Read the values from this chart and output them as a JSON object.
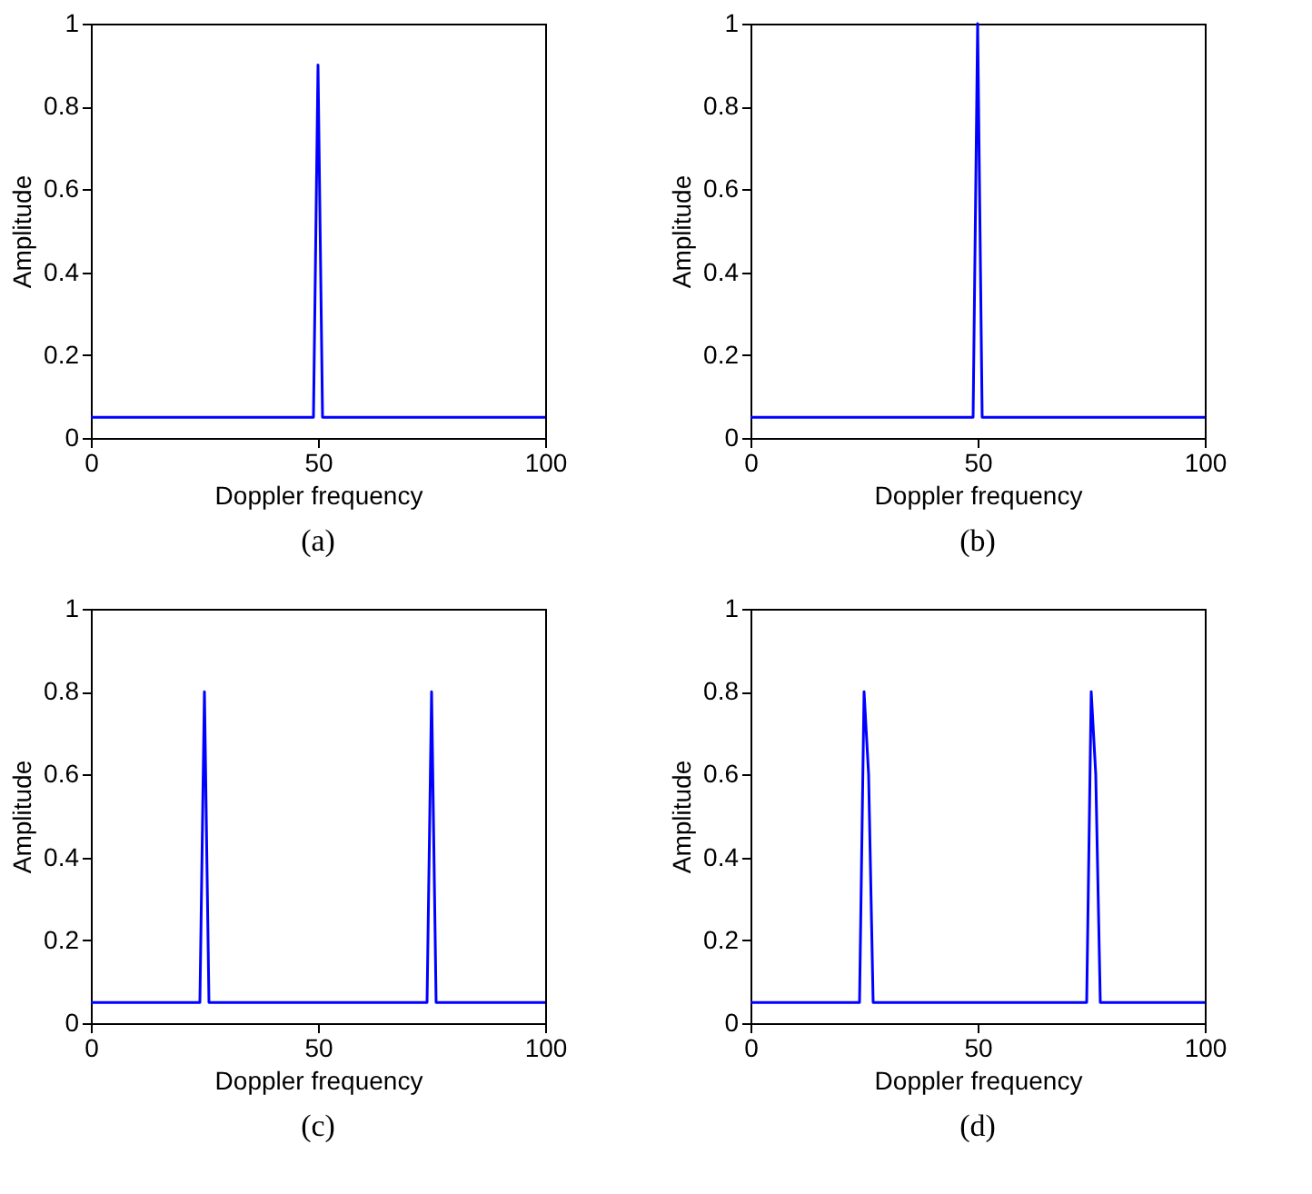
{
  "chart_data": [
    {
      "type": "line",
      "xlabel": "Doppler frequency",
      "ylabel": "Amplitude",
      "annotations": [
        "(a)"
      ],
      "xlim": [
        0,
        100
      ],
      "ylim": [
        0,
        1
      ],
      "xticks": [
        0,
        50,
        100
      ],
      "yticks": [
        0,
        0.2,
        0.4,
        0.6,
        0.8,
        1
      ],
      "grid": false,
      "series": [
        {
          "color": "#0000ff",
          "x": [
            0,
            49,
            50,
            51,
            100
          ],
          "values": [
            0.05,
            0.05,
            0.9,
            0.05,
            0.05
          ]
        }
      ]
    },
    {
      "type": "line",
      "xlabel": "Doppler frequency",
      "ylabel": "Amplitude",
      "annotations": [
        "(b)"
      ],
      "xlim": [
        0,
        100
      ],
      "ylim": [
        0,
        1
      ],
      "xticks": [
        0,
        50,
        100
      ],
      "yticks": [
        0,
        0.2,
        0.4,
        0.6,
        0.8,
        1
      ],
      "grid": false,
      "series": [
        {
          "color": "#0000ff",
          "x": [
            0,
            49,
            50,
            51,
            100
          ],
          "values": [
            0.05,
            0.05,
            1,
            0.05,
            0.05
          ]
        }
      ]
    },
    {
      "type": "line",
      "xlabel": "Doppler frequency",
      "ylabel": "Amplitude",
      "annotations": [
        "(c)"
      ],
      "xlim": [
        0,
        100
      ],
      "ylim": [
        0,
        1
      ],
      "xticks": [
        0,
        50,
        100
      ],
      "yticks": [
        0,
        0.2,
        0.4,
        0.6,
        0.8,
        1
      ],
      "grid": false,
      "series": [
        {
          "color": "#0000ff",
          "x": [
            0,
            24,
            25,
            26,
            74,
            75,
            76,
            100
          ],
          "values": [
            0.05,
            0.05,
            0.8,
            0.05,
            0.05,
            0.8,
            0.05,
            0.05
          ]
        }
      ]
    },
    {
      "type": "line",
      "xlabel": "Doppler frequency",
      "ylabel": "Amplitude",
      "annotations": [
        "(d)"
      ],
      "xlim": [
        0,
        100
      ],
      "ylim": [
        0,
        1
      ],
      "xticks": [
        0,
        50,
        100
      ],
      "yticks": [
        0,
        0.2,
        0.4,
        0.6,
        0.8,
        1
      ],
      "grid": false,
      "series": [
        {
          "color": "#0000ff",
          "x": [
            0,
            24,
            25,
            26,
            27,
            74,
            75,
            76,
            77,
            100
          ],
          "values": [
            0.05,
            0.05,
            0.8,
            0.6,
            0.05,
            0.05,
            0.8,
            0.6,
            0.05,
            0.05
          ]
        }
      ]
    }
  ]
}
